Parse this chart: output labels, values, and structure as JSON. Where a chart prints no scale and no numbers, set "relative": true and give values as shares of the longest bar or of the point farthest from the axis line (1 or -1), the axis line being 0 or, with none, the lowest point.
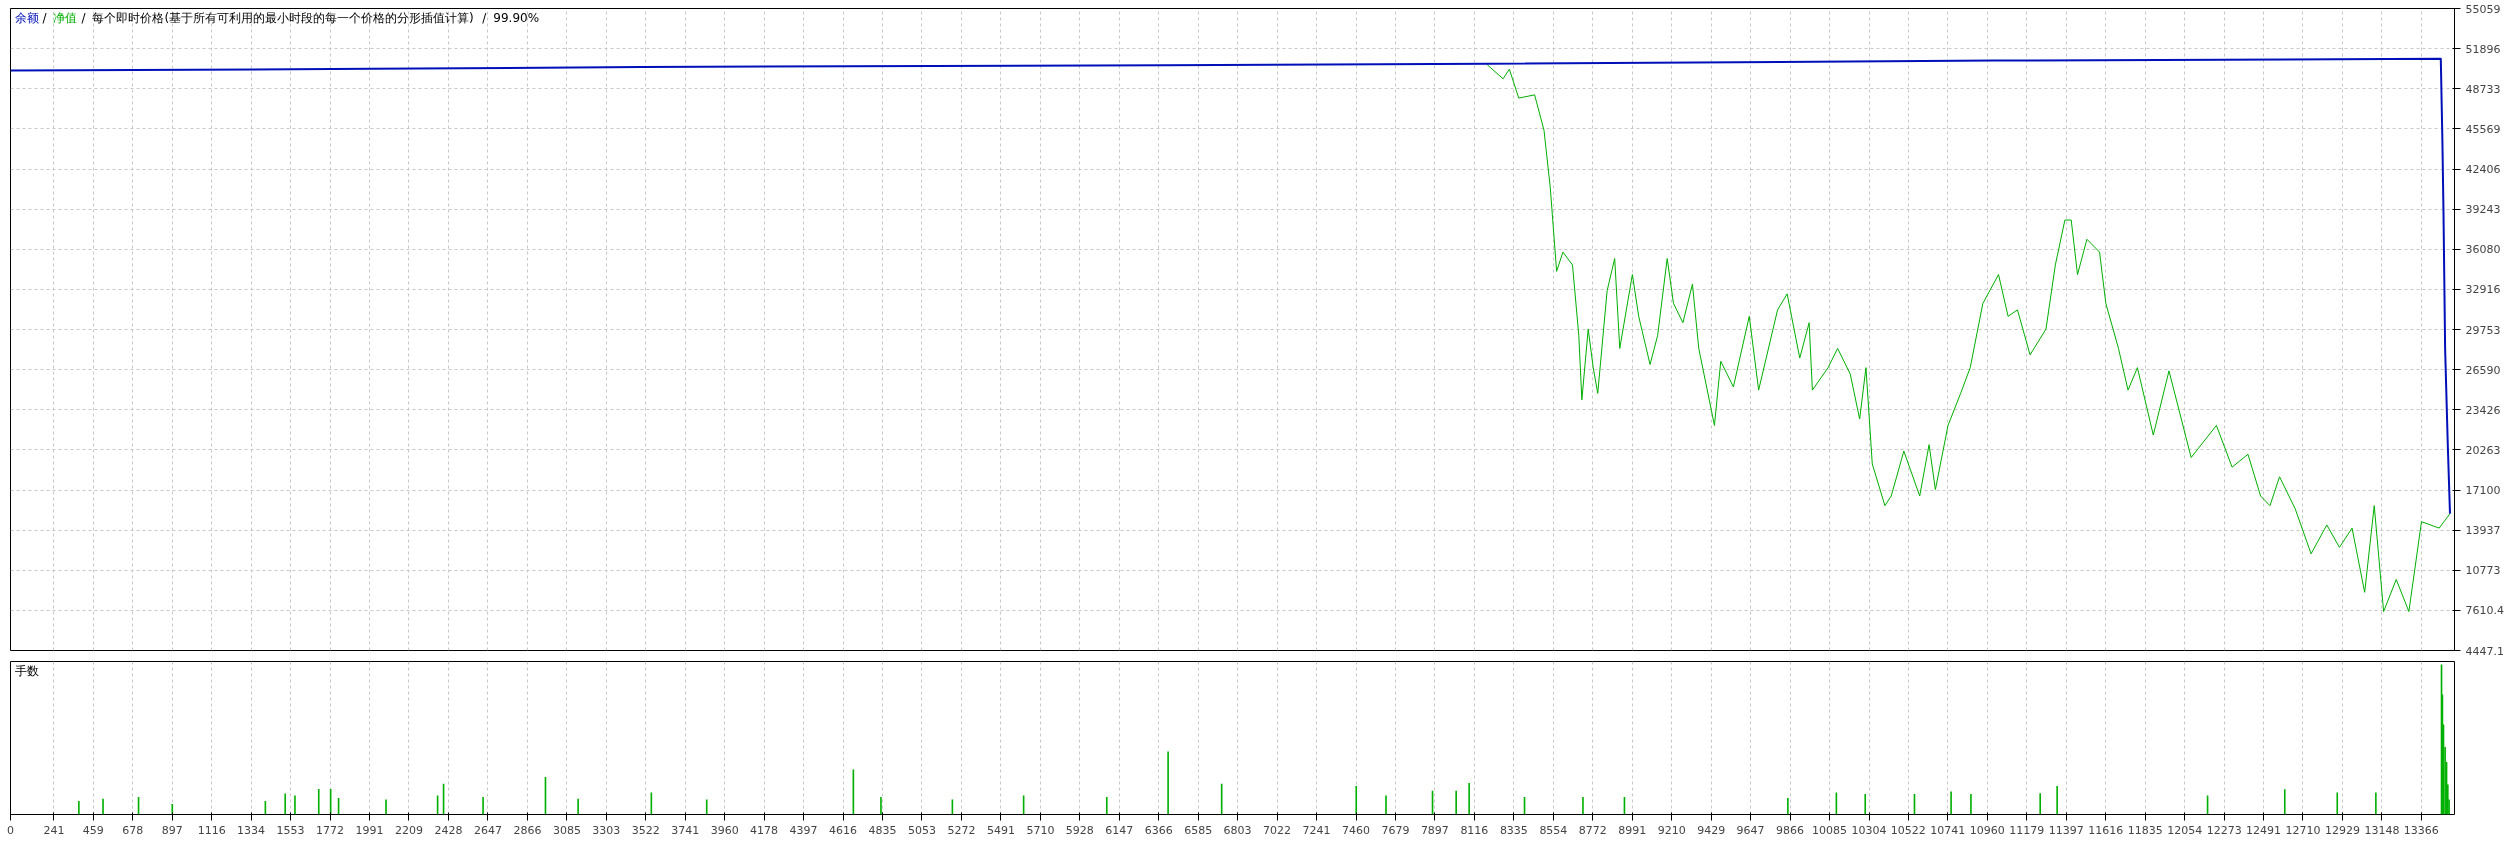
{
  "chart_data": [
    {
      "type": "line",
      "title": "每个即时价格(基于所有可利用的最小时段的每一个价格的分形插值计算) / 99.90%",
      "annotations": [
        "/",
        "/"
      ],
      "grid": true,
      "tick_labels": "y",
      "xlim": [
        0,
        13550
      ],
      "ylim": [
        4447.1,
        55059
      ],
      "xticks": [
        0,
        241,
        459,
        678,
        897,
        1116,
        1334,
        1553,
        1772,
        1991,
        2209,
        2428,
        2647,
        2866,
        3085,
        3303,
        3522,
        3741,
        3960,
        4178,
        4397,
        4616,
        4835,
        5053,
        5272,
        5491,
        5710,
        5928,
        6147,
        6366,
        6585,
        6803,
        7022,
        7241,
        7460,
        7679,
        7897,
        8116,
        8335,
        8554,
        8772,
        8991,
        9210,
        9429,
        9647,
        9866,
        10085,
        10304,
        10522,
        10741,
        10960,
        11179,
        11397,
        11616,
        11835,
        12054,
        12273,
        12491,
        12710,
        12929,
        13148,
        13366
      ],
      "yticks": [
        4447.1,
        7610.4,
        10773,
        13937,
        17100,
        20263,
        23426,
        26590,
        29753,
        32916,
        36080,
        39243,
        42406,
        45569,
        48733,
        51896,
        55059
      ],
      "series": [
        {
          "name": "净值",
          "color": "#00b000",
          "x": [
            8187,
            8275,
            8310,
            8362,
            8450,
            8502,
            8537,
            8572,
            8607,
            8660,
            8695,
            8712,
            8747,
            8775,
            8800,
            8852,
            8894,
            8922,
            8992,
            9027,
            9090,
            9132,
            9185,
            9220,
            9272,
            9325,
            9360,
            9447,
            9482,
            9552,
            9640,
            9692,
            9797,
            9850,
            9920,
            9972,
            9990,
            10077,
            10130,
            10200,
            10252,
            10287,
            10322,
            10392,
            10427,
            10497,
            10585,
            10637,
            10672,
            10742,
            10812,
            10865,
            10935,
            11022,
            11075,
            11127,
            11197,
            11285,
            11337,
            11390,
            11425,
            11460,
            11512,
            11582,
            11617,
            11687,
            11740,
            11792,
            11880,
            11967,
            12090,
            12230,
            12317,
            12405,
            12475,
            12527,
            12580,
            12667,
            12755,
            12842,
            12912,
            12982,
            13052,
            13105,
            13157,
            13227,
            13297,
            13367,
            13465,
            13525
          ],
          "values": [
            50628,
            49515,
            50274,
            47997,
            48250,
            45467,
            40913,
            34335,
            35853,
            34841,
            29275,
            24215,
            29781,
            26745,
            24721,
            32817,
            35347,
            28263,
            34082,
            30793,
            26998,
            29275,
            35347,
            31805,
            30287,
            33323,
            28263,
            22191,
            27251,
            25227,
            30793,
            24974,
            31299,
            32564,
            27504,
            30287,
            24974,
            26745,
            28263,
            26239,
            22697,
            26745,
            19155,
            15866,
            16625,
            20167,
            16625,
            20673,
            17131,
            22191,
            24721,
            26745,
            31805,
            34082,
            30793,
            31299,
            27757,
            29781,
            34841,
            38383,
            38383,
            34082,
            36865,
            35853,
            31805,
            28263,
            24974,
            26745,
            21432,
            26492,
            19661,
            22191,
            18902,
            19914,
            16625,
            15866,
            18143,
            15613,
            12071,
            14348,
            12577,
            14095,
            9035,
            15866,
            7517,
            10047,
            7517,
            14601,
            14095,
            15236
          ]
        },
        {
          "name": "余额",
          "color": "#0010b8",
          "x": [
            0,
            2000,
            3500,
            6400,
            8200,
            11000,
            13474,
            13483,
            13489,
            13498,
            13513,
            13525
          ],
          "values": [
            50173,
            50300,
            50450,
            50580,
            50700,
            50950,
            51094,
            44510,
            38955,
            28246,
            20550,
            15236
          ]
        }
      ]
    },
    {
      "type": "bar",
      "title": "手数",
      "relative": true,
      "grid": true,
      "tick_labels": "x",
      "color": "#00b000",
      "xlim": [
        0,
        13550
      ],
      "xticks": [
        0,
        241,
        459,
        678,
        897,
        1116,
        1334,
        1553,
        1772,
        1991,
        2209,
        2428,
        2647,
        2866,
        3085,
        3303,
        3522,
        3741,
        3960,
        4178,
        4397,
        4616,
        4835,
        5053,
        5272,
        5491,
        5710,
        5928,
        6147,
        6366,
        6585,
        6803,
        7022,
        7241,
        7460,
        7679,
        7897,
        8116,
        8335,
        8554,
        8772,
        8991,
        9210,
        9429,
        9647,
        9866,
        10085,
        10304,
        10522,
        10741,
        10960,
        11179,
        11397,
        11616,
        11835,
        12054,
        12273,
        12491,
        12710,
        12929,
        13148,
        13366
      ],
      "x": [
        379,
        513,
        710,
        897,
        1413,
        1523,
        1577,
        1709,
        1775,
        1819,
        2082,
        2368,
        2401,
        2620,
        2966,
        3147,
        3553,
        3860,
        4673,
        4826,
        5222,
        5617,
        6078,
        6418,
        6715,
        7461,
        7626,
        7884,
        8015,
        8087,
        8394,
        8718,
        8948,
        9854,
        10123,
        10283,
        10556,
        10759,
        10869,
        11253,
        11347,
        12181,
        12609,
        12900,
        13114,
        13478,
        13483,
        13489,
        13498,
        13506,
        13513,
        13520
      ],
      "values": [
        0.09,
        0.105,
        0.116,
        0.07,
        0.09,
        0.14,
        0.126,
        0.17,
        0.17,
        0.11,
        0.1,
        0.126,
        0.205,
        0.116,
        0.25,
        0.105,
        0.147,
        0.1,
        0.3,
        0.116,
        0.1,
        0.126,
        0.116,
        0.42,
        0.205,
        0.19,
        0.126,
        0.158,
        0.158,
        0.21,
        0.116,
        0.116,
        0.116,
        0.11,
        0.147,
        0.137,
        0.137,
        0.153,
        0.137,
        0.142,
        0.19,
        0.126,
        0.168,
        0.147,
        0.147,
        1,
        0.8,
        0.6,
        0.45,
        0.35,
        0.2,
        0.1
      ]
    }
  ]
}
